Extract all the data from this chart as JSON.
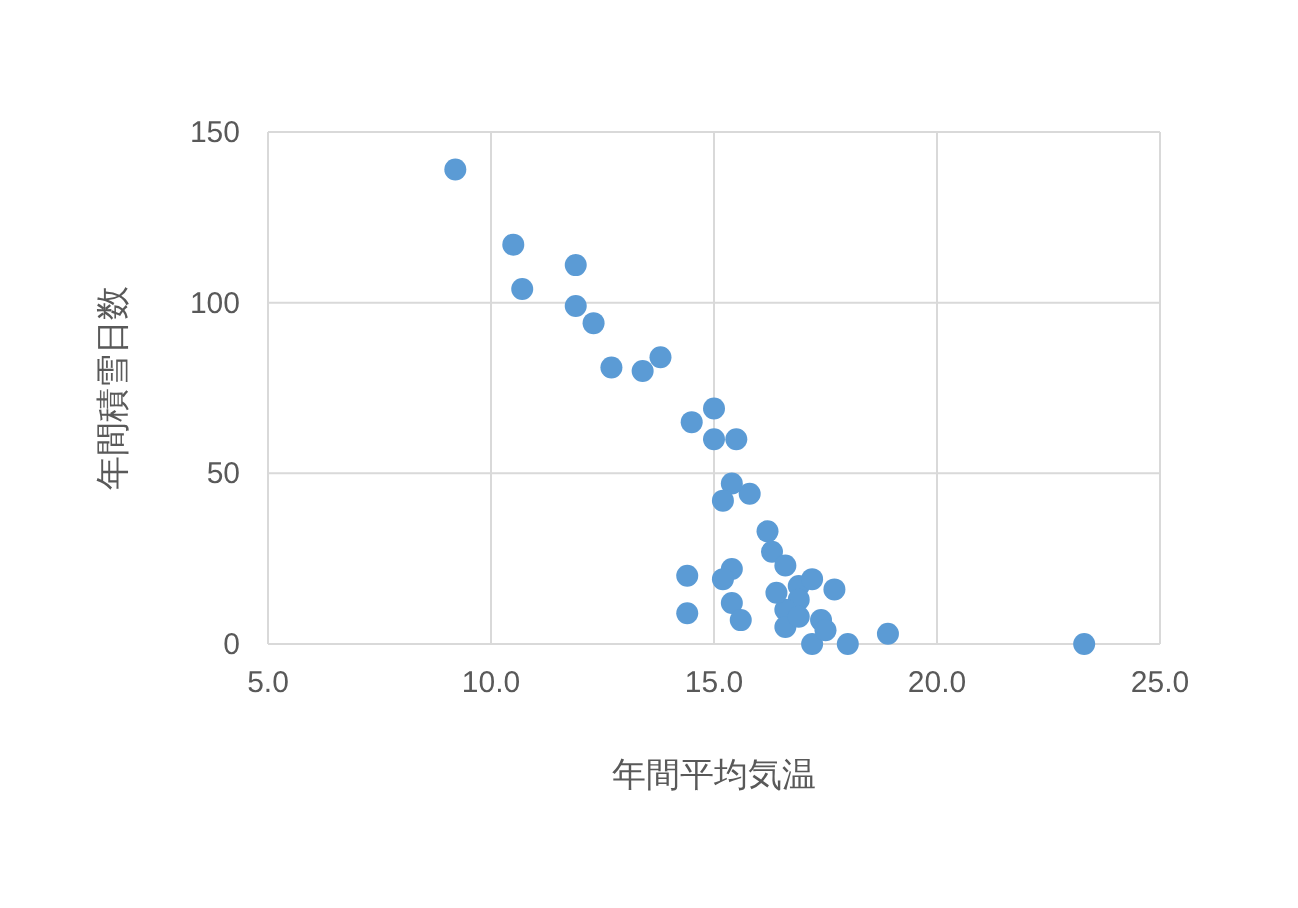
{
  "chart_data": {
    "type": "scatter",
    "xlabel": "年間平均気温",
    "ylabel": "年間積雪日数",
    "xlim": [
      5,
      25
    ],
    "xticks": [
      {
        "value": 5,
        "label": "5.0"
      },
      {
        "value": 10,
        "label": "10.0"
      },
      {
        "value": 15,
        "label": "15.0"
      },
      {
        "value": 20,
        "label": "20.0"
      },
      {
        "value": 25,
        "label": "25.0"
      }
    ],
    "ylim": [
      0,
      150
    ],
    "yticks": [
      0,
      50,
      100,
      150
    ],
    "grid": true,
    "marker": "circle",
    "series": [
      {
        "color": "#5b9bd5",
        "x": [
          9.2,
          10.5,
          10.7,
          11.9,
          11.9,
          12.3,
          12.7,
          13.4,
          13.8,
          14.5,
          15.0,
          15.0,
          15.5,
          15.8,
          15.4,
          15.2,
          16.2,
          16.3,
          14.4,
          14.4,
          15.4,
          15.2,
          15.4,
          15.6,
          16.6,
          16.9,
          16.9,
          17.2,
          17.7,
          16.6,
          17.2,
          18.0,
          18.9,
          16.6,
          17.4,
          16.4,
          16.9,
          17.5,
          23.3
        ],
        "values": [
          139,
          117,
          104,
          111,
          99,
          94,
          81,
          80,
          84,
          65,
          69,
          60,
          60,
          44,
          47,
          42,
          33,
          27,
          20,
          9,
          22,
          19,
          12,
          7,
          23,
          17,
          13,
          19,
          16,
          10,
          0,
          0,
          3,
          5,
          7,
          15,
          8,
          4,
          0
        ]
      }
    ]
  }
}
